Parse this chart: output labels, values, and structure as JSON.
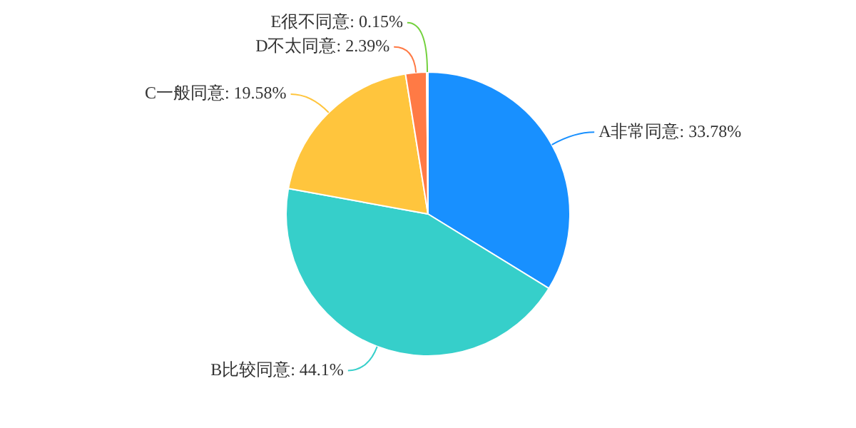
{
  "chart_data": {
    "type": "pie",
    "categories": [
      "A非常同意",
      "B比较同意",
      "C一般同意",
      "D不太同意",
      "E很不同意"
    ],
    "values": [
      33.78,
      44.1,
      19.58,
      2.39,
      0.15
    ],
    "value_labels": [
      "33.78%",
      "44.1%",
      "19.58%",
      "2.39%",
      "0.15%"
    ],
    "colors": [
      "#1890ff",
      "#36cfca",
      "#ffc53d",
      "#ff7a45",
      "#73d13d"
    ]
  }
}
